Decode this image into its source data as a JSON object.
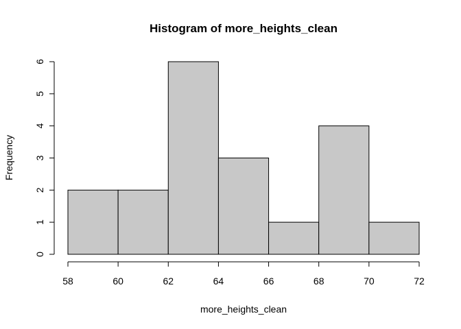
{
  "chart_data": {
    "type": "bar",
    "title": "Histogram of more_heights_clean",
    "xlabel": "more_heights_clean",
    "ylabel": "Frequency",
    "bins": [
      {
        "start": 58,
        "end": 60,
        "count": 2
      },
      {
        "start": 60,
        "end": 62,
        "count": 2
      },
      {
        "start": 62,
        "end": 64,
        "count": 6
      },
      {
        "start": 64,
        "end": 66,
        "count": 3
      },
      {
        "start": 66,
        "end": 68,
        "count": 1
      },
      {
        "start": 68,
        "end": 70,
        "count": 4
      },
      {
        "start": 70,
        "end": 72,
        "count": 1
      }
    ],
    "xticks": [
      "58",
      "60",
      "62",
      "64",
      "66",
      "68",
      "70",
      "72"
    ],
    "yticks": [
      "0",
      "1",
      "2",
      "3",
      "4",
      "5",
      "6"
    ],
    "xlim": [
      58,
      72
    ],
    "ylim": [
      0,
      6
    ],
    "grid": false,
    "bar_fill": "#c8c8c8",
    "bar_stroke": "#000000"
  }
}
